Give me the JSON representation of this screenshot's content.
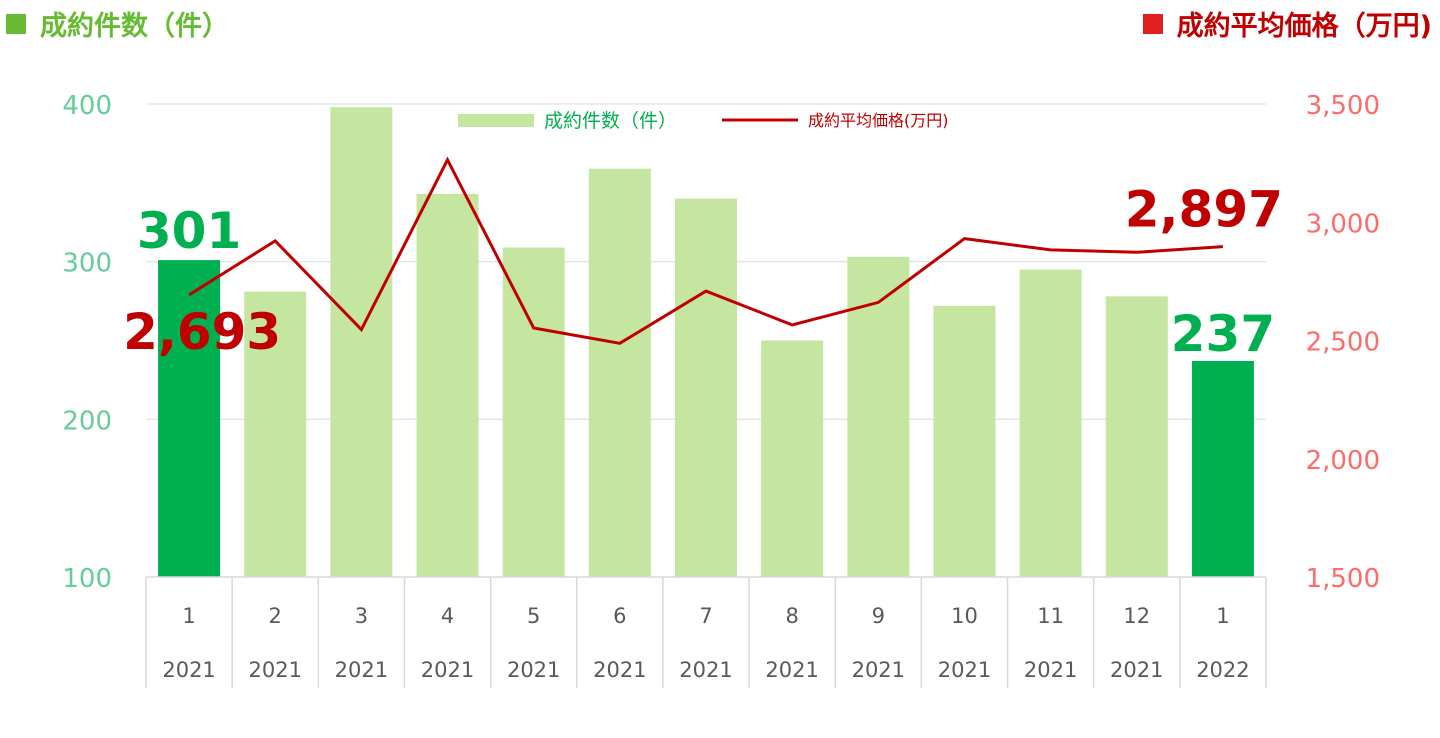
{
  "header": {
    "left_title": "成約件数（件）",
    "right_title": "成約平均価格（万円)"
  },
  "colors": {
    "bar_light": "#c5e6a0",
    "bar_highlight": "#00b050",
    "line": "#c00000",
    "left_axis": "#66cc99",
    "right_axis": "#ff6b6b",
    "header_left_square": "#66bb33",
    "header_right_square": "#e02020"
  },
  "chart_data": {
    "type": "bar",
    "categories": [
      [
        "1",
        "2021"
      ],
      [
        "2",
        "2021"
      ],
      [
        "3",
        "2021"
      ],
      [
        "4",
        "2021"
      ],
      [
        "5",
        "2021"
      ],
      [
        "6",
        "2021"
      ],
      [
        "7",
        "2021"
      ],
      [
        "8",
        "2021"
      ],
      [
        "9",
        "2021"
      ],
      [
        "10",
        "2021"
      ],
      [
        "11",
        "2021"
      ],
      [
        "12",
        "2021"
      ],
      [
        "1",
        "2022"
      ]
    ],
    "series": [
      {
        "name": "成約件数（件）",
        "type": "bar",
        "axis": "left",
        "values": [
          301,
          281,
          398,
          343,
          309,
          359,
          340,
          250,
          303,
          272,
          295,
          278,
          237
        ],
        "highlighted": [
          true,
          false,
          false,
          false,
          false,
          false,
          false,
          false,
          false,
          false,
          false,
          false,
          true
        ]
      },
      {
        "name": "成約平均価格(万円)",
        "type": "line",
        "axis": "right",
        "values": [
          2693,
          2921,
          2546,
          3264,
          2553,
          2488,
          2709,
          2566,
          2661,
          2931,
          2883,
          2873,
          2897
        ]
      }
    ],
    "left_axis": {
      "ylim": [
        100,
        400
      ],
      "ticks": [
        "100",
        "200",
        "300",
        "400"
      ]
    },
    "right_axis": {
      "ylim": [
        1500,
        3500
      ],
      "ticks": [
        "1,500",
        "2,000",
        "2,500",
        "3,000",
        "3,500"
      ]
    },
    "data_labels": [
      {
        "series": 0,
        "index": 0,
        "text": "301"
      },
      {
        "series": 0,
        "index": 12,
        "text": "237"
      },
      {
        "series": 1,
        "index": 0,
        "text": "2,693"
      },
      {
        "series": 1,
        "index": 12,
        "text": "2,897"
      }
    ],
    "legend_position": "top-center",
    "grid": true
  }
}
